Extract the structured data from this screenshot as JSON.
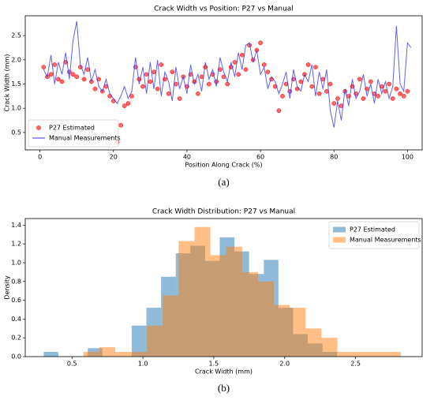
{
  "chart_data": [
    {
      "type": "line",
      "title": "Crack Width vs Position: P27 vs Manual",
      "caption": "(a)",
      "x_label": "Position Along Crack (%)",
      "y_label": "Crack Width (mm)",
      "xlim": [
        -4,
        104
      ],
      "ylim": [
        0.14,
        2.91
      ],
      "xticks": [
        0,
        20,
        40,
        60,
        80,
        100
      ],
      "yticks": [
        0.5,
        {
          "value": 1.0,
          "label": "1.0"
        },
        1.5,
        {
          "value": 2.0,
          "label": "2.0"
        },
        2.5
      ],
      "legend": "lower left",
      "series": [
        {
          "name": "P27 Estimated",
          "mode": "markers",
          "color": "#ff0000",
          "x": [
            1,
            2,
            3,
            4,
            5,
            6,
            7,
            8,
            9,
            10,
            11,
            12,
            13,
            14,
            15,
            16,
            17,
            18,
            19,
            20,
            21,
            22,
            23,
            24,
            25,
            26,
            27,
            28,
            29,
            30,
            31,
            32,
            33,
            34,
            35,
            36,
            37,
            38,
            39,
            40,
            41,
            42,
            43,
            44,
            45,
            46,
            47,
            48,
            49,
            50,
            51,
            52,
            53,
            54,
            55,
            56,
            57,
            58,
            59,
            60,
            61,
            62,
            63,
            64,
            65,
            66,
            67,
            68,
            69,
            70,
            71,
            72,
            73,
            74,
            75,
            76,
            77,
            78,
            79,
            80,
            81,
            82,
            83,
            84,
            85,
            86,
            87,
            88,
            89,
            90,
            91,
            92,
            93,
            94,
            95,
            96,
            97,
            98,
            99,
            100
          ],
          "values": [
            1.85,
            1.65,
            1.7,
            1.9,
            1.6,
            1.55,
            1.95,
            1.75,
            1.7,
            1.65,
            1.85,
            1.6,
            1.8,
            1.55,
            1.4,
            1.6,
            1.35,
            1.45,
            1.25,
            1.15,
            0.3,
            0.65,
            1.05,
            1.1,
            1.25,
            1.85,
            1.6,
            1.45,
            1.7,
            1.55,
            1.75,
            1.4,
            1.9,
            1.6,
            1.3,
            1.75,
            1.5,
            1.2,
            1.65,
            1.45,
            1.7,
            1.55,
            1.3,
            1.65,
            1.85,
            1.5,
            1.7,
            1.55,
            1.8,
            1.65,
            1.5,
            1.85,
            1.95,
            1.7,
            2.1,
            1.8,
            2.3,
            2.0,
            2.2,
            2.35,
            1.9,
            1.75,
            1.6,
            1.45,
            0.95,
            1.25,
            1.5,
            1.35,
            1.6,
            1.4,
            1.55,
            1.7,
            1.9,
            1.45,
            1.85,
            1.3,
            1.6,
            1.35,
            1.5,
            1.1,
            1.2,
            1.05,
            1.35,
            1.25,
            1.45,
            1.3,
            1.6,
            1.2,
            1.4,
            1.55,
            1.3,
            1.25,
            1.45,
            1.35,
            1.5,
            1.2,
            1.4,
            1.3,
            1.25,
            1.35
          ]
        },
        {
          "name": "Manual Measurements",
          "mode": "line",
          "color": "#3b3bf0",
          "x": [
            1,
            2,
            3,
            4,
            5,
            6,
            7,
            8,
            9,
            10,
            11,
            12,
            13,
            14,
            15,
            16,
            17,
            18,
            19,
            20,
            21,
            22,
            23,
            24,
            25,
            26,
            27,
            28,
            29,
            30,
            31,
            32,
            33,
            34,
            35,
            36,
            37,
            38,
            39,
            40,
            41,
            42,
            43,
            44,
            45,
            46,
            47,
            48,
            49,
            50,
            51,
            52,
            53,
            54,
            55,
            56,
            57,
            58,
            59,
            60,
            61,
            62,
            63,
            64,
            65,
            66,
            67,
            68,
            69,
            70,
            71,
            72,
            73,
            74,
            75,
            76,
            77,
            78,
            79,
            80,
            81,
            82,
            83,
            84,
            85,
            86,
            87,
            88,
            89,
            90,
            91,
            92,
            93,
            94,
            95,
            96,
            97,
            98,
            99,
            100,
            101
          ],
          "values": [
            1.8,
            1.65,
            2.1,
            1.5,
            1.95,
            1.7,
            2.15,
            1.6,
            2.4,
            2.8,
            1.9,
            1.7,
            2.05,
            1.55,
            1.8,
            1.45,
            1.35,
            1.6,
            1.3,
            1.2,
            1.1,
            1.25,
            1.45,
            1.2,
            1.35,
            2.05,
            1.5,
            1.85,
            1.3,
            1.95,
            1.4,
            2.0,
            1.25,
            1.75,
            1.55,
            1.15,
            1.85,
            1.4,
            1.65,
            1.3,
            1.9,
            1.5,
            1.7,
            1.35,
            1.95,
            1.6,
            1.8,
            1.45,
            2.05,
            1.75,
            1.55,
            1.95,
            1.65,
            2.15,
            1.8,
            2.3,
            2.35,
            1.95,
            2.2,
            1.7,
            1.85,
            1.4,
            1.65,
            1.55,
            1.3,
            1.5,
            1.75,
            1.2,
            1.8,
            1.45,
            1.35,
            1.7,
            1.55,
            1.9,
            1.25,
            1.75,
            1.4,
            1.8,
            0.95,
            0.6,
            1.15,
            0.75,
            1.4,
            1.05,
            1.6,
            1.2,
            1.35,
            1.7,
            1.25,
            1.5,
            1.1,
            1.6,
            1.3,
            1.55,
            1.2,
            1.45,
            2.7,
            1.5,
            1.35,
            2.35,
            2.25
          ]
        }
      ]
    },
    {
      "type": "histogram",
      "title": "Crack Width Distribution: P27 vs Manual",
      "caption": "(b)",
      "x_label": "Crack Width (mm)",
      "y_label": "Density",
      "xlim": [
        0.17,
        2.97
      ],
      "ylim": [
        0,
        1.47
      ],
      "xticks": [
        0.5,
        {
          "value": 1.0,
          "label": "1.0"
        },
        1.5,
        {
          "value": 2.0,
          "label": "2.0"
        },
        2.5
      ],
      "yticks": [
        {
          "value": 0,
          "label": "0.0"
        },
        0.2,
        0.4,
        0.6,
        0.8,
        {
          "value": 1.0,
          "label": "1.0"
        },
        1.2,
        1.4
      ],
      "legend": "upper right",
      "series": [
        {
          "name": "P27 Estimated",
          "color": "#1f77b4",
          "bins": [
            0.3,
            0.404,
            0.507,
            0.611,
            0.714,
            0.818,
            0.921,
            1.025,
            1.128,
            1.232,
            1.335,
            1.439,
            1.542,
            1.646,
            1.749,
            1.853,
            1.956,
            2.06,
            2.163,
            2.267,
            2.37
          ],
          "values": [
            0.05,
            0,
            0,
            0.09,
            0,
            0,
            0.33,
            0.52,
            0.85,
            1.1,
            1.18,
            1.02,
            1.27,
            1.12,
            0.88,
            1.03,
            0.52,
            0.24,
            0.14,
            0.05
          ]
        },
        {
          "name": "Manual Measurements",
          "color": "#ff7f0e",
          "bins": [
            0.58,
            0.692,
            0.804,
            0.916,
            1.028,
            1.14,
            1.252,
            1.364,
            1.476,
            1.588,
            1.7,
            1.812,
            1.924,
            2.036,
            2.148,
            2.26,
            2.372,
            2.484,
            2.596,
            2.708,
            2.82
          ],
          "values": [
            0.05,
            0.1,
            0.05,
            0.05,
            0.33,
            0.65,
            1.23,
            1.38,
            1.08,
            1.17,
            0.9,
            0.8,
            0.55,
            0.52,
            0.3,
            0.2,
            0.05,
            0.05,
            0.05,
            0.05
          ]
        }
      ]
    }
  ]
}
